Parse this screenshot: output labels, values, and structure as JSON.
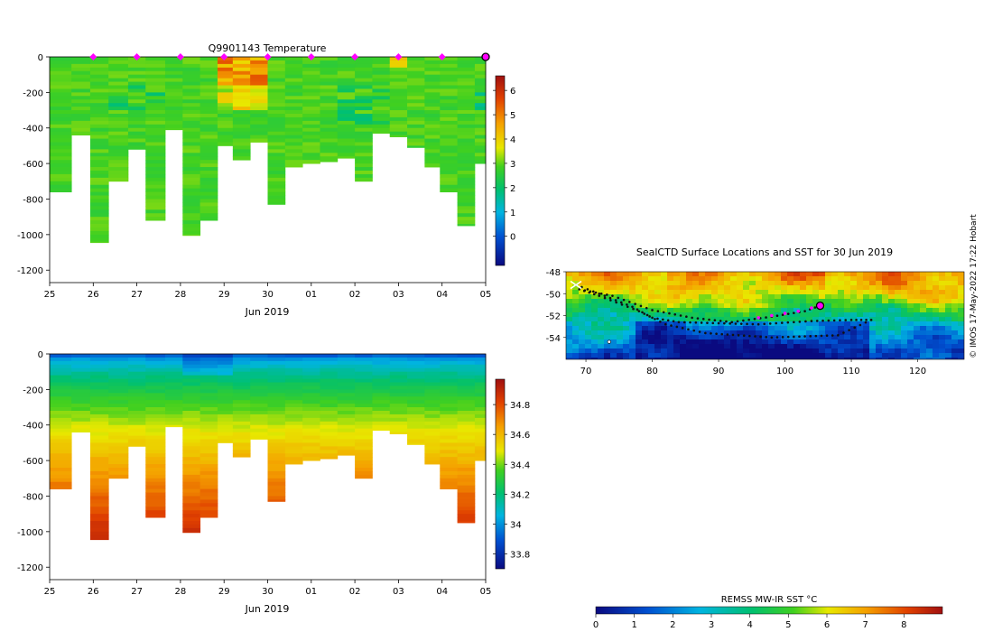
{
  "chart_data": [
    {
      "id": "temperature",
      "type": "heatmap",
      "title": "Q9901143  Temperature",
      "xlabel": "Jun 2019",
      "ylabel": "",
      "x_ticks": [
        "25",
        "26",
        "27",
        "28",
        "29",
        "30",
        "01",
        "02",
        "03",
        "04",
        "05"
      ],
      "x_tick_values": [
        25,
        26,
        27,
        28,
        29,
        30,
        31,
        32,
        33,
        34,
        35
      ],
      "xlim": [
        25,
        35
      ],
      "y_ticks": [
        "0",
        "-200",
        "-400",
        "-600",
        "-800",
        "-1000",
        "-1200"
      ],
      "y_tick_values": [
        0,
        -200,
        -400,
        -600,
        -800,
        -1000,
        -1200
      ],
      "ylim": [
        -1270,
        0
      ],
      "colorbar": {
        "ticks": [
          "0",
          "1",
          "2",
          "3",
          "4",
          "5",
          "6"
        ],
        "tick_values": [
          0,
          1,
          2,
          3,
          4,
          5,
          6
        ],
        "range": [
          -1.2,
          6.6
        ]
      },
      "profile_times": [
        25.0,
        25.5,
        25.93,
        26.35,
        26.8,
        27.2,
        27.65,
        28.05,
        28.45,
        28.85,
        29.2,
        29.6,
        30.0,
        30.4,
        30.8,
        31.2,
        31.6,
        32.0,
        32.4,
        32.8,
        33.2,
        33.6,
        33.95,
        34.35,
        34.75
      ],
      "max_depths": [
        760,
        440,
        1045,
        700,
        520,
        920,
        410,
        1005,
        920,
        500,
        580,
        480,
        830,
        620,
        600,
        590,
        570,
        700,
        430,
        450,
        510,
        620,
        760,
        950,
        600
      ],
      "surface_markers": [
        26,
        27,
        28,
        29,
        30,
        31,
        32,
        33,
        34
      ],
      "last_profile_marker": 35,
      "description_of_values": "Water temperature (°C) by depth; mostly 2.5-3.5, warmer 4-5.5 near surface around 28.6-29.6"
    },
    {
      "id": "salinity",
      "type": "heatmap",
      "title": "",
      "xlabel": "Jun 2019",
      "ylabel": "",
      "x_ticks": [
        "25",
        "26",
        "27",
        "28",
        "29",
        "30",
        "01",
        "02",
        "03",
        "04",
        "05"
      ],
      "x_tick_values": [
        25,
        26,
        27,
        28,
        29,
        30,
        31,
        32,
        33,
        34,
        35
      ],
      "xlim": [
        25,
        35
      ],
      "y_ticks": [
        "0",
        "-200",
        "-400",
        "-600",
        "-800",
        "-1000",
        "-1200"
      ],
      "y_tick_values": [
        0,
        -200,
        -400,
        -600,
        -800,
        -1000,
        -1200
      ],
      "ylim": [
        -1270,
        0
      ],
      "colorbar": {
        "ticks": [
          "33.8",
          "34",
          "34.2",
          "34.4",
          "34.6",
          "34.8"
        ],
        "tick_values": [
          33.8,
          34.0,
          34.2,
          34.4,
          34.6,
          34.8
        ],
        "range": [
          33.7,
          34.97
        ]
      },
      "description_of_values": "Salinity increases with depth from ~33.9 at surface to ~34.9 at 1000 m"
    },
    {
      "id": "sst_map",
      "type": "heatmap",
      "title": "SealCTD Surface Locations and SST for 30 Jun 2019",
      "x_ticks": [
        "70",
        "80",
        "90",
        "100",
        "110",
        "120"
      ],
      "x_tick_values": [
        70,
        80,
        90,
        100,
        110,
        120
      ],
      "xlim": [
        67,
        127
      ],
      "y_ticks": [
        "-48",
        "-50",
        "-52",
        "-54"
      ],
      "y_tick_values": [
        -48,
        -50,
        -52,
        -54
      ],
      "ylim": [
        -56,
        -48
      ],
      "colorbar": {
        "label": "REMSS MW-IR SST °C",
        "ticks": [
          "0",
          "1",
          "2",
          "3",
          "4",
          "5",
          "6",
          "7",
          "8"
        ],
        "tick_values": [
          0,
          1,
          2,
          3,
          4,
          5,
          6,
          7,
          8
        ],
        "range": [
          0,
          9
        ]
      },
      "track_latest_position": [
        105.3,
        -51.1
      ],
      "track_start_position": [
        68.5,
        -49.2
      ]
    }
  ],
  "credit": "© IMOS 17-May-2022 17:22 Hobart"
}
